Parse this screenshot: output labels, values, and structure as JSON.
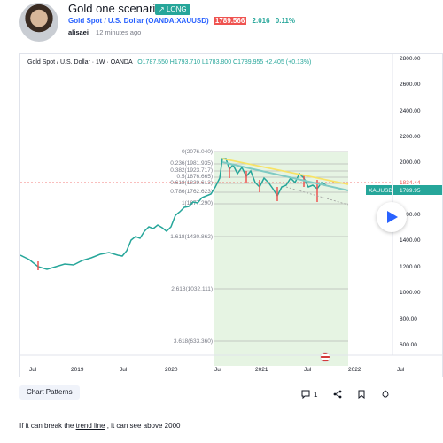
{
  "idea": {
    "title": "Gold one scenario",
    "badge": "LONG",
    "symbol": "Gold Spot / U.S. Dollar (OANDA:XAUUSD)",
    "price": "1789.566",
    "change": "2.016",
    "change_pct": "0.11%",
    "author": "alisaei",
    "posted": "12 minutes ago"
  },
  "chart": {
    "legend_title": "Gold Spot / U.S. Dollar · 1W · OANDA",
    "ohlc": "O1787.550 H1793.710 L1783.800 C1789.955 +2.405 (+0.13%)",
    "price_labels": [
      "2800.00",
      "2600.00",
      "2400.00",
      "2200.00",
      "2000.00",
      "1800.00",
      "1600.00",
      "1400.00",
      "1200.00",
      "1000.00",
      "800.00",
      "600.00"
    ],
    "time_labels": [
      "Jul",
      "2019",
      "Jul",
      "2020",
      "Jul",
      "2021",
      "Jul",
      "2022",
      "Jul"
    ],
    "fib_levels": [
      "0(2076.040)",
      "0.236(1981.935)",
      "0.382(1923.717)",
      "0.5(1876.665)",
      "0.618(1829.613)",
      "0.786(1762.623)",
      "1(1677.290)",
      "1.618(1430.862)",
      "2.618(1032.111)",
      "3.618(633.360)"
    ],
    "resistance_price": "1834.44",
    "current_symbol": "XAUUSD",
    "current_price": "1789.95",
    "colors": {
      "up": "#26a69a",
      "down": "#ef5350",
      "fib_bg": "#e6f4e3",
      "trendline": "#80cbc4",
      "yellow": "#f7e266"
    }
  },
  "footer": {
    "category": "Chart Patterns",
    "comments": "1",
    "description_pre": "If it can break the ",
    "description_link": "trend line",
    "description_post": " , it can see above 2000"
  }
}
